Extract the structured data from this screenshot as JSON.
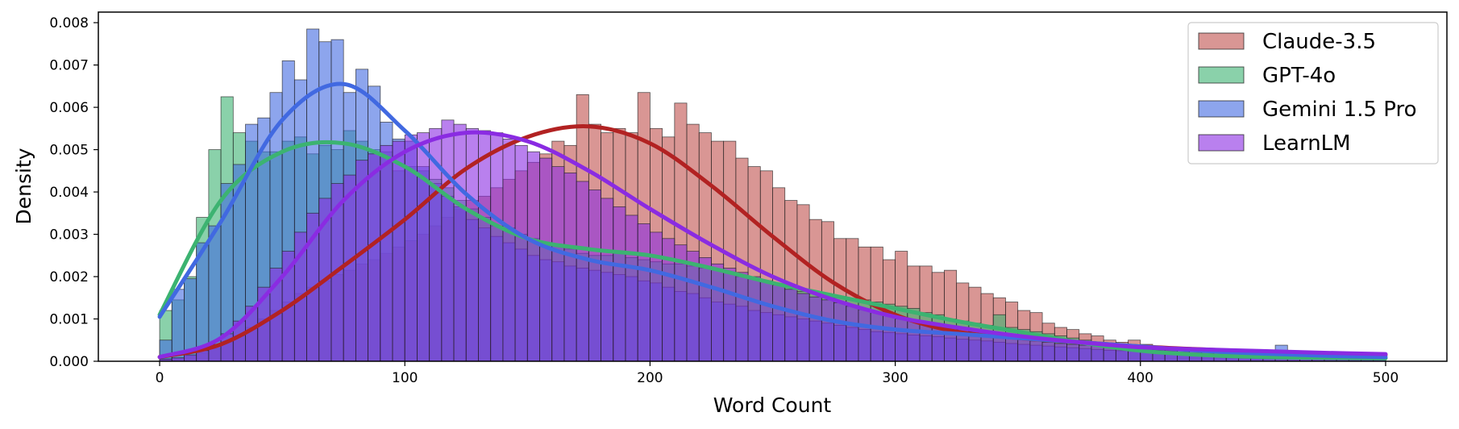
{
  "chart_data": {
    "type": "bar",
    "subtype": "overlaid histogram with KDE curves",
    "title": "",
    "xlabel": "Word Count",
    "ylabel": "Density",
    "xlim": [
      -25,
      525
    ],
    "ylim": [
      0,
      0.00825
    ],
    "xticks": [
      0,
      100,
      200,
      300,
      400,
      500
    ],
    "xtick_labels": [
      "0",
      "100",
      "200",
      "300",
      "400",
      "500"
    ],
    "yticks": [
      0,
      0.001,
      0.002,
      0.003,
      0.004,
      0.005,
      0.006,
      0.007,
      0.008
    ],
    "ytick_labels": [
      "0.000",
      "0.001",
      "0.002",
      "0.003",
      "0.004",
      "0.005",
      "0.006",
      "0.007",
      "0.008"
    ],
    "bin_start": 0,
    "bin_width": 5,
    "grid": false,
    "legend_position": "top-right",
    "series": [
      {
        "name": "Claude-3.5",
        "bar_color": "#c0504d",
        "line_color": "#b22222",
        "hist": [
          6e-05,
          8e-05,
          0.00012,
          0.0002,
          0.0003,
          0.00045,
          0.0006,
          0.0008,
          0.001,
          0.0012,
          0.0014,
          0.0016,
          0.00175,
          0.0019,
          0.00205,
          0.00215,
          0.0023,
          0.0024,
          0.00255,
          0.0027,
          0.00285,
          0.003,
          0.0032,
          0.0034,
          0.0036,
          0.0038,
          0.0039,
          0.0041,
          0.0043,
          0.0045,
          0.0047,
          0.0049,
          0.0052,
          0.0051,
          0.0063,
          0.0056,
          0.0054,
          0.0055,
          0.0054,
          0.00635,
          0.0055,
          0.0053,
          0.0061,
          0.0056,
          0.0054,
          0.0052,
          0.0052,
          0.0048,
          0.0046,
          0.0045,
          0.0041,
          0.0038,
          0.0037,
          0.00335,
          0.0033,
          0.0029,
          0.0029,
          0.0027,
          0.0027,
          0.0024,
          0.0026,
          0.00225,
          0.00225,
          0.0021,
          0.00215,
          0.00185,
          0.00175,
          0.0016,
          0.0015,
          0.0014,
          0.0012,
          0.00115,
          0.0009,
          0.0008,
          0.00075,
          0.00065,
          0.0006,
          0.0005,
          0.00045,
          0.0005,
          0.0004,
          0.00035,
          0.0003,
          0.0003,
          0.00028,
          0.0003,
          0.00028,
          0.00025,
          0.00022,
          0.00022,
          0.0002,
          0.00018,
          0.00016,
          0.00015,
          0.00014,
          0.00012,
          0.00012,
          0.0001,
          0.0001,
          8e-05
        ],
        "kde_x": [
          0,
          25,
          50,
          75,
          100,
          125,
          150,
          175,
          200,
          225,
          250,
          275,
          300,
          325,
          350,
          375,
          400,
          425,
          450,
          475,
          500
        ],
        "kde_y": [
          0.0001,
          0.0004,
          0.0012,
          0.00225,
          0.00335,
          0.00455,
          0.0053,
          0.00555,
          0.00515,
          0.00415,
          0.00295,
          0.00185,
          0.0011,
          0.0007,
          0.00055,
          0.00045,
          0.00035,
          0.00028,
          0.00022,
          0.00018,
          0.00015
        ]
      },
      {
        "name": "GPT-4o",
        "bar_color": "#3cb371",
        "line_color": "#3cb371",
        "hist": [
          0.0012,
          0.00145,
          0.002,
          0.0034,
          0.005,
          0.00625,
          0.0054,
          0.0052,
          0.00495,
          0.00495,
          0.0052,
          0.0053,
          0.0049,
          0.0051,
          0.005,
          0.00545,
          0.0052,
          0.005,
          0.00495,
          0.0045,
          0.0046,
          0.0045,
          0.0043,
          0.0041,
          0.0038,
          0.0036,
          0.0034,
          0.0032,
          0.00315,
          0.003,
          0.0029,
          0.0028,
          0.00275,
          0.00265,
          0.00255,
          0.0025,
          0.0025,
          0.00255,
          0.00245,
          0.0024,
          0.00235,
          0.0023,
          0.0023,
          0.00225,
          0.0022,
          0.00215,
          0.0021,
          0.002,
          0.00195,
          0.0019,
          0.0018,
          0.00175,
          0.00165,
          0.0016,
          0.00155,
          0.0015,
          0.00145,
          0.00145,
          0.0014,
          0.00135,
          0.0013,
          0.00125,
          0.00115,
          0.0011,
          0.001,
          0.00095,
          0.0009,
          0.00085,
          0.0011,
          0.0008,
          0.00075,
          0.0007,
          0.00065,
          0.0006,
          0.00055,
          0.0005,
          0.00045,
          0.0004,
          0.00035,
          0.0003,
          0.00028,
          0.00026,
          0.00024,
          0.00022,
          0.0002,
          0.00018,
          0.00016,
          0.00014,
          0.00012,
          0.0001,
          0.0001,
          9e-05,
          8e-05,
          8e-05,
          7e-05,
          6e-05,
          6e-05,
          5e-05,
          5e-05,
          5e-05
        ],
        "kde_x": [
          0,
          25,
          50,
          75,
          100,
          125,
          150,
          175,
          200,
          225,
          250,
          275,
          300,
          325,
          350,
          375,
          400,
          425,
          450,
          475,
          500
        ],
        "kde_y": [
          0.0011,
          0.0038,
          0.00495,
          0.00515,
          0.0046,
          0.0036,
          0.0029,
          0.00265,
          0.0025,
          0.0022,
          0.00185,
          0.00155,
          0.00125,
          0.00095,
          0.0007,
          0.00045,
          0.00025,
          0.00015,
          0.0001,
          8e-05,
          7e-05
        ]
      },
      {
        "name": "Gemini 1.5 Pro",
        "bar_color": "#4169e1",
        "line_color": "#4169e1",
        "hist": [
          0.0005,
          0.0017,
          0.00195,
          0.0028,
          0.0032,
          0.0042,
          0.00465,
          0.0056,
          0.00575,
          0.00635,
          0.0071,
          0.00665,
          0.00785,
          0.00755,
          0.0076,
          0.00635,
          0.0069,
          0.0065,
          0.00565,
          0.00525,
          0.0052,
          0.0046,
          0.0042,
          0.0039,
          0.00365,
          0.00335,
          0.00315,
          0.00295,
          0.0028,
          0.00265,
          0.0025,
          0.0024,
          0.00235,
          0.00225,
          0.0022,
          0.00215,
          0.0021,
          0.00205,
          0.002,
          0.0019,
          0.00185,
          0.00175,
          0.00165,
          0.0016,
          0.0015,
          0.0014,
          0.00135,
          0.0013,
          0.0012,
          0.00115,
          0.0011,
          0.00105,
          0.001,
          0.00095,
          0.0009,
          0.00085,
          0.0008,
          0.00075,
          0.0007,
          0.00068,
          0.00065,
          0.00062,
          0.0006,
          0.00058,
          0.00055,
          0.00052,
          0.0005,
          0.00048,
          0.00045,
          0.00042,
          0.0004,
          0.00038,
          0.00036,
          0.00034,
          0.00032,
          0.0003,
          0.00028,
          0.00026,
          0.00025,
          0.00024,
          0.00023,
          0.00022,
          0.00021,
          0.0002,
          0.00019,
          0.00018,
          0.00017,
          0.00016,
          0.00016,
          0.00015,
          0.00015,
          0.00038,
          0.00014,
          0.00013,
          0.00013,
          0.00012,
          0.00012,
          0.00011,
          0.00011,
          0.0001
        ],
        "kde_x": [
          0,
          25,
          50,
          75,
          100,
          125,
          150,
          175,
          200,
          225,
          250,
          275,
          300,
          325,
          350,
          375,
          400,
          425,
          450,
          475,
          500
        ],
        "kde_y": [
          0.00105,
          0.0033,
          0.0057,
          0.00655,
          0.00545,
          0.00395,
          0.0029,
          0.0024,
          0.00215,
          0.00175,
          0.0013,
          0.00095,
          0.00075,
          0.00065,
          0.00055,
          0.00045,
          0.00035,
          0.00025,
          0.00018,
          0.00013,
          0.0001
        ]
      },
      {
        "name": "LearnLM",
        "bar_color": "#8a2be2",
        "line_color": "#8a2be2",
        "hist": [
          5e-05,
          8e-05,
          0.00015,
          0.00025,
          0.0004,
          0.00065,
          0.00095,
          0.0013,
          0.00175,
          0.0022,
          0.0026,
          0.00305,
          0.0035,
          0.00385,
          0.0042,
          0.0044,
          0.00475,
          0.0049,
          0.0051,
          0.0052,
          0.00535,
          0.0054,
          0.0055,
          0.0057,
          0.0056,
          0.0055,
          0.00545,
          0.0054,
          0.00525,
          0.0051,
          0.00495,
          0.0048,
          0.0046,
          0.00445,
          0.00425,
          0.00405,
          0.00385,
          0.00365,
          0.00345,
          0.00325,
          0.00305,
          0.0029,
          0.00275,
          0.0026,
          0.00245,
          0.0023,
          0.0022,
          0.0021,
          0.002,
          0.0019,
          0.0018,
          0.0017,
          0.0016,
          0.00152,
          0.00145,
          0.00138,
          0.0013,
          0.00122,
          0.00115,
          0.00108,
          0.001,
          0.00095,
          0.0009,
          0.00085,
          0.0008,
          0.00075,
          0.0007,
          0.00065,
          0.0006,
          0.00056,
          0.00052,
          0.00048,
          0.00045,
          0.00042,
          0.0004,
          0.00038,
          0.00036,
          0.00034,
          0.00032,
          0.0003,
          0.00028,
          0.00027,
          0.00026,
          0.00025,
          0.00024,
          0.00023,
          0.00022,
          0.00021,
          0.0002,
          0.00019,
          0.00018,
          0.00018,
          0.00017,
          0.00017,
          0.00016,
          0.00016,
          0.00015,
          0.00015,
          0.00015,
          0.00014
        ],
        "kde_x": [
          0,
          25,
          50,
          75,
          100,
          125,
          150,
          175,
          200,
          225,
          250,
          275,
          300,
          325,
          350,
          375,
          400,
          425,
          450,
          475,
          500
        ],
        "kde_y": [
          0.0001,
          0.00055,
          0.002,
          0.0038,
          0.00495,
          0.0054,
          0.0052,
          0.0045,
          0.0036,
          0.00275,
          0.002,
          0.00145,
          0.00105,
          0.0008,
          0.0006,
          0.00045,
          0.00033,
          0.00028,
          0.00024,
          0.0002,
          0.00017
        ]
      }
    ]
  }
}
